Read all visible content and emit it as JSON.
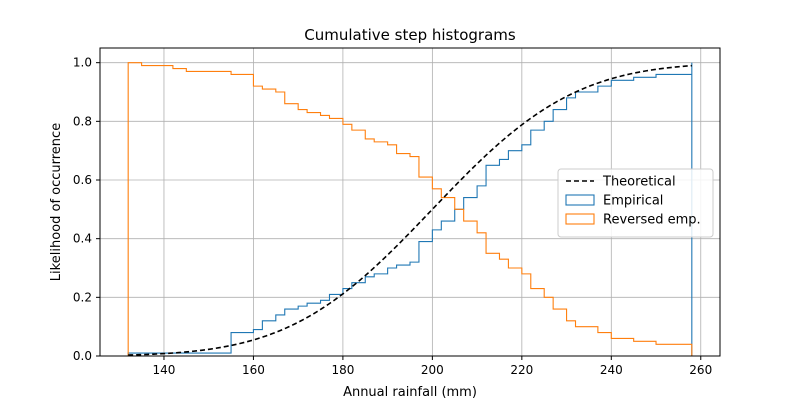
{
  "chart_data": {
    "type": "line",
    "title": "Cumulative step histograms",
    "xlabel": "Annual rainfall (mm)",
    "ylabel": "Likelihood of occurrence",
    "xlim": [
      125.7,
      264.3
    ],
    "ylim": [
      0.0,
      1.05
    ],
    "xticks": [
      140,
      160,
      180,
      200,
      220,
      240,
      260
    ],
    "yticks": [
      0.0,
      0.2,
      0.4,
      0.6,
      0.8,
      1.0
    ],
    "xtick_labels": [
      "140",
      "160",
      "180",
      "200",
      "220",
      "240",
      "260"
    ],
    "ytick_labels": [
      "0.0",
      "0.2",
      "0.4",
      "0.6",
      "0.8",
      "1.0"
    ],
    "grid": true,
    "legend_position": "center-right",
    "colors": {
      "empirical": "#1f77b4",
      "reversed": "#ff7f0e",
      "theoretical": "#000000"
    },
    "series": [
      {
        "name": "Theoretical",
        "style": "dashed",
        "mu": 200,
        "sigma": 25,
        "x_range": [
          132,
          258
        ]
      },
      {
        "name": "Empirical",
        "style": "step",
        "x_edges": [
          132,
          155,
          160,
          162,
          165,
          167,
          170,
          172,
          175,
          177,
          180,
          182,
          185,
          187,
          190,
          192,
          195,
          197,
          200,
          202,
          205,
          207,
          210,
          212,
          215,
          217,
          220,
          222,
          225,
          227,
          230,
          232,
          237,
          240,
          245,
          250,
          258
        ],
        "values": [
          0.01,
          0.08,
          0.09,
          0.12,
          0.14,
          0.16,
          0.17,
          0.18,
          0.19,
          0.21,
          0.23,
          0.25,
          0.27,
          0.28,
          0.3,
          0.31,
          0.32,
          0.39,
          0.43,
          0.46,
          0.5,
          0.54,
          0.58,
          0.65,
          0.67,
          0.7,
          0.72,
          0.77,
          0.8,
          0.84,
          0.88,
          0.9,
          0.92,
          0.94,
          0.95,
          0.96,
          1.0
        ]
      },
      {
        "name": "Reversed emp.",
        "style": "step",
        "x_edges": [
          132,
          135,
          142,
          145,
          150,
          155,
          160,
          162,
          165,
          167,
          170,
          172,
          175,
          177,
          180,
          182,
          185,
          187,
          190,
          192,
          195,
          197,
          200,
          202,
          205,
          207,
          210,
          212,
          215,
          217,
          220,
          222,
          225,
          227,
          230,
          232,
          237,
          240,
          245,
          250,
          258
        ],
        "values": [
          1.0,
          0.99,
          0.98,
          0.97,
          0.97,
          0.96,
          0.92,
          0.91,
          0.9,
          0.86,
          0.84,
          0.83,
          0.82,
          0.81,
          0.79,
          0.77,
          0.74,
          0.73,
          0.72,
          0.69,
          0.68,
          0.61,
          0.57,
          0.54,
          0.5,
          0.46,
          0.42,
          0.35,
          0.33,
          0.3,
          0.28,
          0.23,
          0.2,
          0.16,
          0.12,
          0.1,
          0.08,
          0.06,
          0.05,
          0.04,
          0.04
        ]
      }
    ]
  }
}
